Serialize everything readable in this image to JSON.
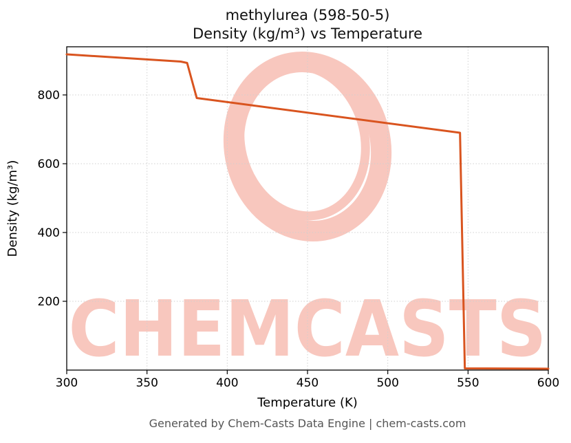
{
  "chart_data": {
    "type": "line",
    "title": "methylurea (598-50-5)",
    "subtitle": "Density (kg/m³) vs Temperature",
    "xlabel": "Temperature (K)",
    "ylabel": "Density (kg/m³)",
    "xlim": [
      300,
      600
    ],
    "ylim": [
      0,
      940
    ],
    "xticks": [
      300,
      350,
      400,
      450,
      500,
      550,
      600
    ],
    "yticks": [
      200,
      400,
      600,
      800
    ],
    "grid": true,
    "legend": "none",
    "line_color": "#d9541f",
    "series": [
      {
        "name": "density",
        "points": [
          [
            300,
            918
          ],
          [
            371,
            897
          ],
          [
            375,
            893
          ],
          [
            381,
            791
          ],
          [
            545,
            690
          ],
          [
            548,
            5
          ],
          [
            600,
            4
          ]
        ]
      }
    ]
  },
  "watermark": {
    "text": "CHEMCASTS",
    "color": "#e8573a",
    "opacity": 0.33
  },
  "footer": {
    "text": "Generated by Chem-Casts Data Engine | chem-casts.com"
  }
}
